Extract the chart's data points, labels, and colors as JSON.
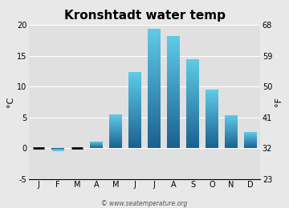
{
  "title": "Kronshtadt water temp",
  "months": [
    "J",
    "F",
    "M",
    "A",
    "M",
    "J",
    "J",
    "A",
    "S",
    "O",
    "N",
    "D"
  ],
  "values_c": [
    0.0,
    -0.2,
    0.0,
    1.1,
    5.5,
    12.4,
    19.4,
    18.2,
    14.5,
    9.5,
    5.4,
    2.6
  ],
  "ylim_c": [
    -5,
    20
  ],
  "ylim_f": [
    23,
    68
  ],
  "yticks_c": [
    -5,
    0,
    5,
    10,
    15,
    20
  ],
  "yticks_f": [
    23,
    32,
    41,
    50,
    59,
    68
  ],
  "ylabel_left": "°C",
  "ylabel_right": "°F",
  "bar_color_top": "#60cce8",
  "bar_color_bottom": "#1a6090",
  "bg_color": "#e8e8e8",
  "plot_bg_color": "#e0e0e0",
  "grid_color": "#ffffff",
  "watermark": "© www.seatemperature.org",
  "title_fontsize": 11,
  "axis_fontsize": 7,
  "label_fontsize": 8,
  "bar_width": 0.65
}
